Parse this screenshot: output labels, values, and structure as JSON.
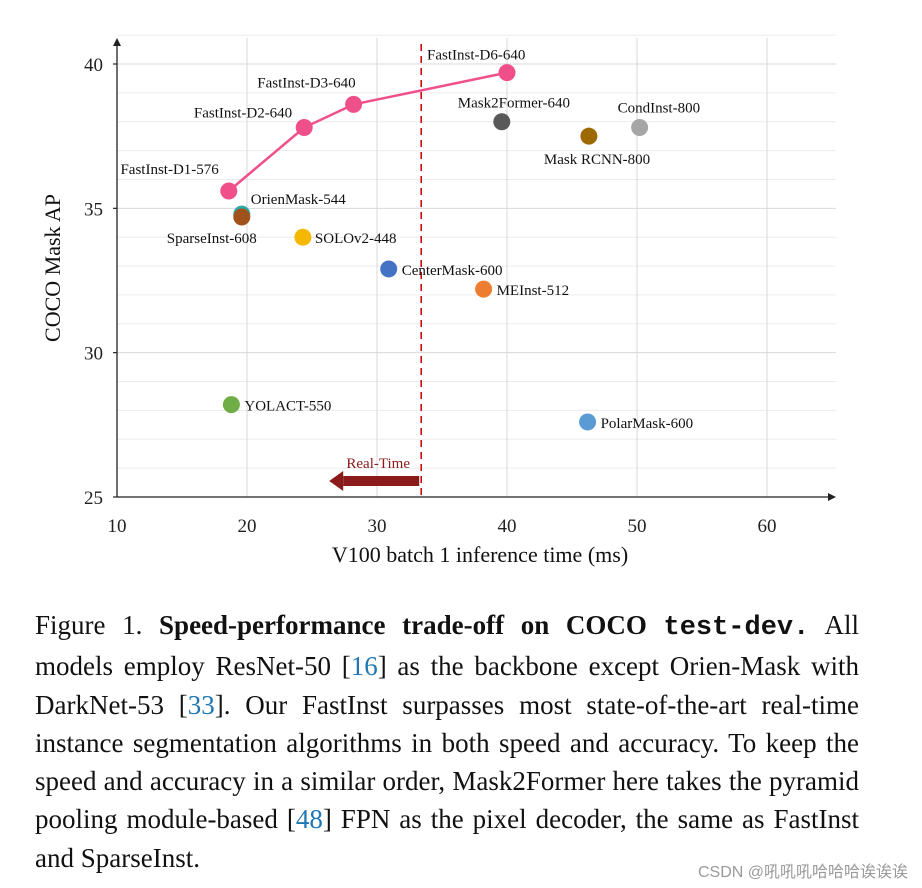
{
  "chart_data": {
    "type": "scatter",
    "title": "",
    "xlabel": "V100 batch 1 inference time (ms)",
    "ylabel": "COCO Mask AP",
    "xlim": [
      10,
      65
    ],
    "ylim": [
      25,
      41
    ],
    "xticks": [
      10,
      20,
      30,
      40,
      50,
      60
    ],
    "yticks": [
      25,
      30,
      35,
      40
    ],
    "grid": true,
    "series": [
      {
        "name": "FastInst",
        "color": "#f0508a",
        "line": true,
        "points": [
          {
            "label": "FastInst-D1-576",
            "x": 18.6,
            "y": 35.6
          },
          {
            "label": "FastInst-D2-640",
            "x": 24.4,
            "y": 37.8
          },
          {
            "label": "FastInst-D3-640",
            "x": 28.2,
            "y": 38.6
          },
          {
            "label": "FastInst-D6-640",
            "x": 40.0,
            "y": 39.7
          }
        ]
      },
      {
        "name": "Mask2Former-640",
        "color": "#595959",
        "points": [
          {
            "label": "Mask2Former-640",
            "x": 39.6,
            "y": 38.0
          }
        ]
      },
      {
        "name": "CondInst-800",
        "color": "#a6a6a6",
        "points": [
          {
            "label": "CondInst-800",
            "x": 50.2,
            "y": 37.8
          }
        ]
      },
      {
        "name": "Mask RCNN-800",
        "color": "#9c6a00",
        "points": [
          {
            "label": "Mask RCNN-800",
            "x": 46.3,
            "y": 37.5
          }
        ]
      },
      {
        "name": "OrienMask-544",
        "color": "#27a9a6",
        "points": [
          {
            "label": "OrienMask-544",
            "x": 19.6,
            "y": 34.8
          }
        ]
      },
      {
        "name": "SparseInst-608",
        "color": "#a0521a",
        "points": [
          {
            "label": "SparseInst-608",
            "x": 19.6,
            "y": 34.7
          }
        ]
      },
      {
        "name": "SOLOv2-448",
        "color": "#f5b800",
        "points": [
          {
            "label": "SOLOv2-448",
            "x": 24.3,
            "y": 34.0
          }
        ]
      },
      {
        "name": "CenterMask-600",
        "color": "#4472c4",
        "points": [
          {
            "label": "CenterMask-600",
            "x": 30.9,
            "y": 32.9
          }
        ]
      },
      {
        "name": "MEInst-512",
        "color": "#ed7d31",
        "points": [
          {
            "label": "MEInst-512",
            "x": 38.2,
            "y": 32.2
          }
        ]
      },
      {
        "name": "YOLACT-550",
        "color": "#70ad47",
        "points": [
          {
            "label": "YOLACT-550",
            "x": 18.8,
            "y": 28.2
          }
        ]
      },
      {
        "name": "PolarMask-600",
        "color": "#5b9bd5",
        "points": [
          {
            "label": "PolarMask-600",
            "x": 46.2,
            "y": 27.6
          }
        ]
      }
    ],
    "annotations": [
      {
        "type": "vline",
        "x": 33.4,
        "color": "#c00000",
        "style": "dashed"
      },
      {
        "type": "arrow",
        "text": "Real-Time",
        "direction": "left",
        "color": "#8b1a1a"
      }
    ]
  },
  "caption": {
    "figure_label": "Figure 1.",
    "bold_title": "Speed-performance trade-off on COCO",
    "code_title": "test-dev.",
    "text_1": "All models employ ResNet-50 [",
    "ref_1": "16",
    "text_2": "] as the backbone except Orien-Mask with DarkNet-53 [",
    "ref_2": "33",
    "text_3": "]. Our FastInst surpasses most state-of-the-art real-time instance segmentation algorithms in both speed and accuracy. To keep the speed and accuracy in a similar order, Mask2Former here takes the pyramid pooling module-based [",
    "ref_3": "48",
    "text_4": "] FPN as the pixel decoder, the same as FastInst and SparseInst."
  },
  "watermark": "CSDN @吼吼吼哈哈哈诶诶诶"
}
